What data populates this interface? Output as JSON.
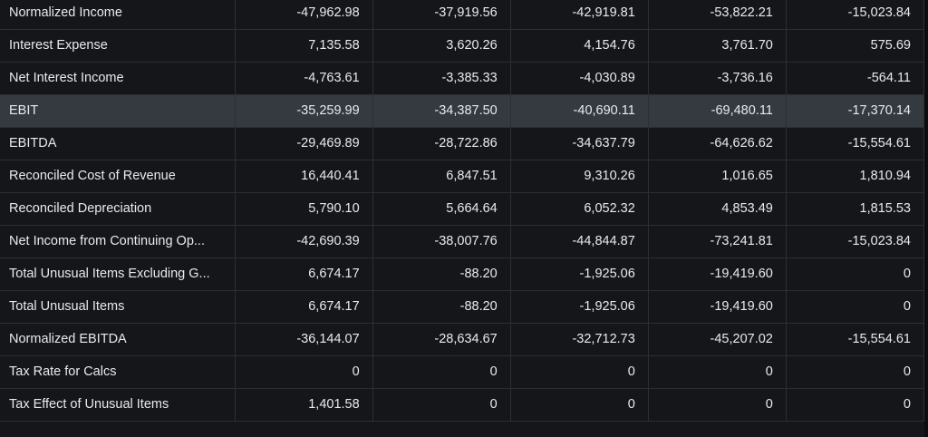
{
  "table": {
    "rows": [
      {
        "label": "Normalized Income",
        "values": [
          "-47,962.98",
          "-37,919.56",
          "-42,919.81",
          "-53,822.21",
          "-15,023.84"
        ]
      },
      {
        "label": "Interest Expense",
        "values": [
          "7,135.58",
          "3,620.26",
          "4,154.76",
          "3,761.70",
          "575.69"
        ]
      },
      {
        "label": "Net Interest Income",
        "values": [
          "-4,763.61",
          "-3,385.33",
          "-4,030.89",
          "-3,736.16",
          "-564.11"
        ]
      },
      {
        "label": "EBIT",
        "values": [
          "-35,259.99",
          "-34,387.50",
          "-40,690.11",
          "-69,480.11",
          "-17,370.14"
        ],
        "highlighted": true
      },
      {
        "label": "EBITDA",
        "values": [
          "-29,469.89",
          "-28,722.86",
          "-34,637.79",
          "-64,626.62",
          "-15,554.61"
        ]
      },
      {
        "label": "Reconciled Cost of Revenue",
        "values": [
          "16,440.41",
          "6,847.51",
          "9,310.26",
          "1,016.65",
          "1,810.94"
        ]
      },
      {
        "label": "Reconciled Depreciation",
        "values": [
          "5,790.10",
          "5,664.64",
          "6,052.32",
          "4,853.49",
          "1,815.53"
        ]
      },
      {
        "label": "Net Income from Continuing Op...",
        "values": [
          "-42,690.39",
          "-38,007.76",
          "-44,844.87",
          "-73,241.81",
          "-15,023.84"
        ]
      },
      {
        "label": "Total Unusual Items Excluding G...",
        "values": [
          "6,674.17",
          "-88.20",
          "-1,925.06",
          "-19,419.60",
          "0"
        ]
      },
      {
        "label": "Total Unusual Items",
        "values": [
          "6,674.17",
          "-88.20",
          "-1,925.06",
          "-19,419.60",
          "0"
        ]
      },
      {
        "label": "Normalized EBITDA",
        "values": [
          "-36,144.07",
          "-28,634.67",
          "-32,712.73",
          "-45,207.02",
          "-15,554.61"
        ]
      },
      {
        "label": "Tax Rate for Calcs",
        "values": [
          "0",
          "0",
          "0",
          "0",
          "0"
        ]
      },
      {
        "label": "Tax Effect of Unusual Items",
        "values": [
          "1,401.58",
          "0",
          "0",
          "0",
          "0"
        ]
      }
    ]
  },
  "colors": {
    "background": "#141619",
    "highlight_row": "#343a3f",
    "text": "#e8eaed",
    "grid": "#2b2f35"
  }
}
